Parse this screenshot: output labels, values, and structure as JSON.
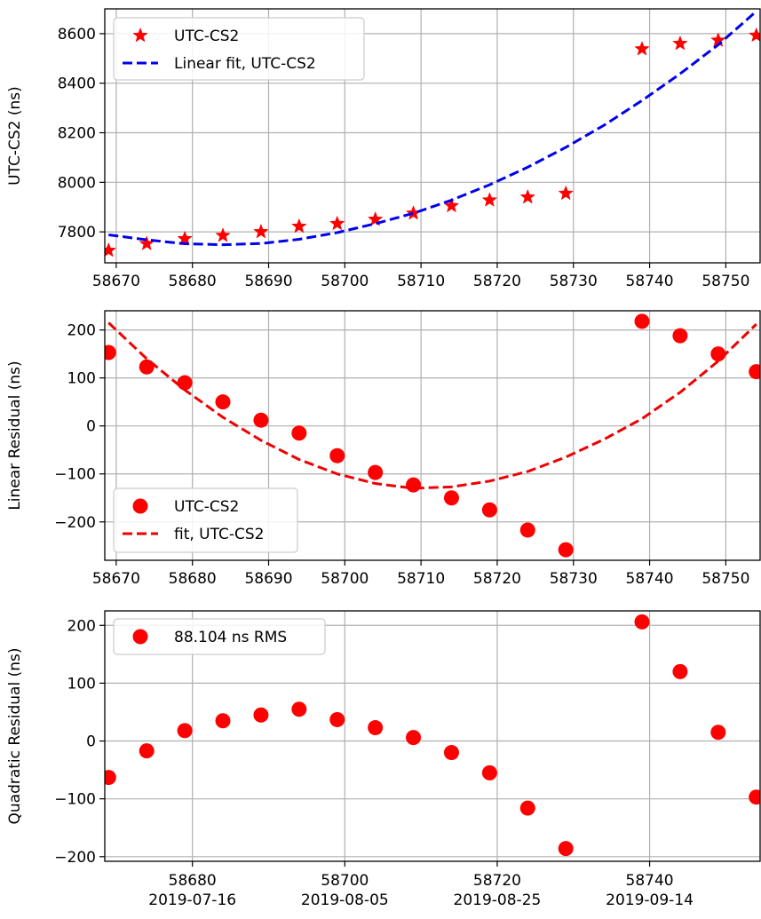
{
  "chart_data": [
    {
      "type": "scatter",
      "ylabel": "UTC-CS2 (ns)",
      "xlim": [
        58668.5,
        58754.5
      ],
      "ylim": [
        7675,
        8700
      ],
      "x_ticks": [
        58670,
        58680,
        58690,
        58700,
        58710,
        58720,
        58730,
        58740,
        58750
      ],
      "y_ticks": [
        7800,
        8000,
        8200,
        8400,
        8600
      ],
      "grid": true,
      "legend_position": "upper-left",
      "series": [
        {
          "name": "UTC-CS2",
          "style": "star-marker",
          "color": "#ff0000",
          "x": [
            58669,
            58674,
            58679,
            58684,
            58689,
            58694,
            58699,
            58704,
            58709,
            58714,
            58719,
            58724,
            58729,
            58739,
            58744,
            58749,
            58754
          ],
          "y": [
            7725,
            7752,
            7772,
            7785,
            7800,
            7822,
            7833,
            7850,
            7875,
            7905,
            7928,
            7940,
            7955,
            8538,
            8560,
            8573,
            8593
          ]
        },
        {
          "name": "Linear fit, UTC-CS2",
          "style": "dashed-line",
          "color": "#0000ee",
          "x": [
            58669,
            58674,
            58679,
            58684,
            58689,
            58694,
            58699,
            58704,
            58709,
            58714,
            58719,
            58724,
            58729,
            58734,
            58739,
            58744,
            58749,
            58754
          ],
          "y": [
            7788,
            7768,
            7752,
            7748,
            7753,
            7770,
            7797,
            7833,
            7875,
            7928,
            7990,
            8061,
            8141,
            8230,
            8330,
            8438,
            8555,
            8690
          ]
        }
      ]
    },
    {
      "type": "scatter",
      "ylabel": "Linear Residual (ns)",
      "xlim": [
        58668.5,
        58754.5
      ],
      "ylim": [
        -280,
        240
      ],
      "x_ticks": [
        58670,
        58680,
        58690,
        58700,
        58710,
        58720,
        58730,
        58740,
        58750
      ],
      "y_ticks": [
        -200,
        -100,
        0,
        100,
        200
      ],
      "y_tick_labels": [
        "−200",
        "−100",
        "0",
        "100",
        "200"
      ],
      "grid": true,
      "legend_position": "lower-left",
      "series": [
        {
          "name": "UTC-CS2",
          "style": "circle-marker",
          "color": "#ff0000",
          "x": [
            58669,
            58674,
            58679,
            58684,
            58689,
            58694,
            58699,
            58704,
            58709,
            58714,
            58719,
            58724,
            58729,
            58739,
            58744,
            58749,
            58754
          ],
          "y": [
            153,
            123,
            90,
            50,
            12,
            -15,
            -62,
            -97,
            -123,
            -150,
            -175,
            -217,
            -258,
            218,
            188,
            150,
            113
          ]
        },
        {
          "name": "fit, UTC-CS2",
          "style": "dashed-line",
          "color": "#ee0000",
          "x": [
            58669,
            58674,
            58679,
            58684,
            58689,
            58694,
            58699,
            58704,
            58709,
            58714,
            58719,
            58724,
            58729,
            58734,
            58739,
            58744,
            58749,
            58754
          ],
          "y": [
            215,
            140,
            75,
            18,
            -30,
            -70,
            -100,
            -120,
            -130,
            -127,
            -115,
            -95,
            -65,
            -28,
            15,
            70,
            135,
            212
          ]
        }
      ]
    },
    {
      "type": "scatter",
      "ylabel": "Quadratic Residual (ns)",
      "xlim": [
        58668.5,
        58754.5
      ],
      "ylim": [
        -208,
        225
      ],
      "x_ticks": [
        58680,
        58700,
        58720,
        58740
      ],
      "x_tick_labels": [
        [
          "58680",
          "2019-07-16"
        ],
        [
          "58700",
          "2019-08-05"
        ],
        [
          "58720",
          "2019-08-25"
        ],
        [
          "58740",
          "2019-09-14"
        ]
      ],
      "y_ticks": [
        -200,
        -100,
        0,
        100,
        200
      ],
      "y_tick_labels": [
        "−200",
        "−100",
        "0",
        "100",
        "200"
      ],
      "grid": true,
      "legend_position": "upper-left",
      "series": [
        {
          "name": "88.104 ns RMS",
          "style": "circle-marker",
          "color": "#ff0000",
          "x": [
            58669,
            58674,
            58679,
            58684,
            58689,
            58694,
            58699,
            58704,
            58709,
            58714,
            58719,
            58724,
            58729,
            58739,
            58744,
            58749,
            58754
          ],
          "y": [
            -63,
            -17,
            18,
            35,
            45,
            55,
            37,
            23,
            6,
            -20,
            -55,
            -116,
            -186,
            206,
            120,
            15,
            -97
          ]
        }
      ]
    }
  ]
}
